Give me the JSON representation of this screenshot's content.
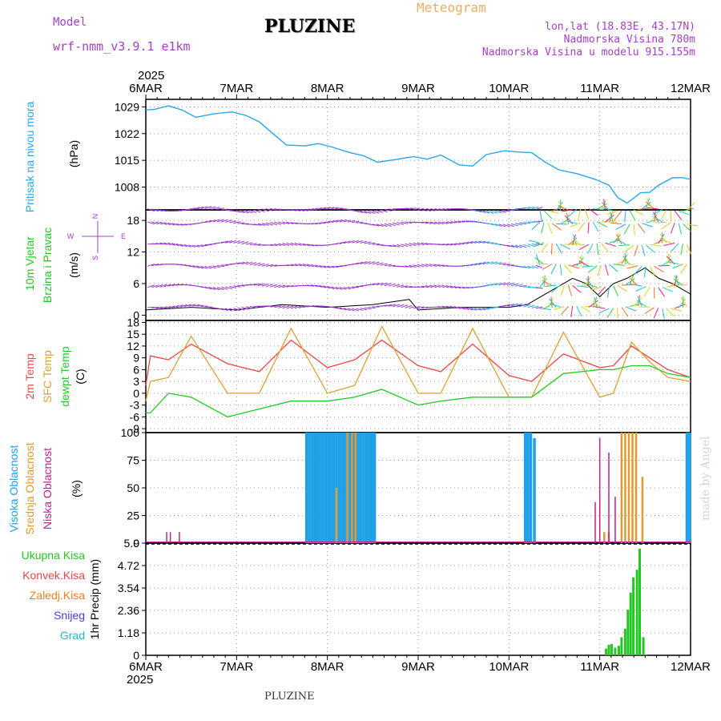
{
  "header": {
    "model_label": "Model",
    "model_name": "wrf-nmm_v3.9.1 e1km",
    "station": "PLUZINE",
    "product": "Meteogram",
    "coords": "lon,lat (18.83E, 43.17N)",
    "altitude": "Nadmorska Visina 780m",
    "model_altitude": "Nadmorska Visina u modelu 915.155m",
    "credit": "made by Angel"
  },
  "footer": {
    "station": "PLUZINE"
  },
  "axis_time": {
    "year": "2025",
    "ticks": [
      "6MAR",
      "7MAR",
      "8MAR",
      "9MAR",
      "10MAR",
      "11MAR",
      "12MAR"
    ]
  },
  "colors": {
    "pressure": "#2aa8e6",
    "temp2m": "#e84848",
    "sfc_temp": "#e0a030",
    "dewpt": "#22cc22",
    "high_cloud": "#1fa0e8",
    "mid_cloud": "#e09a30",
    "low_cloud": "#c0208a",
    "rain_total": "#22c822",
    "rain_conv": "#e84848",
    "rain_frozen": "#f08020",
    "snow": "#4040e0",
    "hail": "#20c0c0",
    "wind_label": "#a640c8"
  },
  "chart_data": [
    {
      "type": "line",
      "panel": "pressure",
      "ylabel": [
        "Pritisak na nivou mora",
        "(hPa)"
      ],
      "ylim": [
        1002,
        1031
      ],
      "yticks": [
        1008,
        1015,
        1022,
        1029
      ],
      "x_days": [
        0,
        0.1,
        0.25,
        0.4,
        0.55,
        0.75,
        0.95,
        1.1,
        1.25,
        1.4,
        1.55,
        1.75,
        1.9,
        2.05,
        2.25,
        2.4,
        2.55,
        2.75,
        2.95,
        3.1,
        3.25,
        3.45,
        3.6,
        3.75,
        3.95,
        4.1,
        4.25,
        4.4,
        4.55,
        4.75,
        4.95,
        5.1,
        5.2,
        5.3,
        5.38,
        5.45,
        5.55,
        5.65,
        5.8,
        5.9,
        6.0
      ],
      "series": [
        {
          "values": [
            1028.2,
            1028.4,
            1029.3,
            1028.2,
            1026.3,
            1027.2,
            1027.7,
            1026.8,
            1025.1,
            1022.0,
            1019.0,
            1018.8,
            1019.4,
            1018.5,
            1017.0,
            1016.2,
            1014.5,
            1015.2,
            1016.0,
            1015.3,
            1016.4,
            1013.8,
            1013.5,
            1016.5,
            1017.5,
            1017.2,
            1017.0,
            1014.5,
            1012.5,
            1011.5,
            1010.0,
            1008.5,
            1005.2,
            1003.8,
            1005.2,
            1006.5,
            1006.6,
            1008.5,
            1010.4,
            1010.5,
            1010.0
          ]
        }
      ]
    },
    {
      "type": "line",
      "panel": "wind",
      "ylabel": [
        "10m Vjetar",
        "Brzina i Pravac",
        "(m/s)"
      ],
      "compass": [
        "N",
        "W",
        "E",
        "S"
      ],
      "ylim": [
        -1,
        20
      ],
      "yticks": [
        0,
        6,
        12,
        18
      ],
      "x_days": [
        0,
        0.5,
        1.0,
        1.5,
        2.0,
        2.5,
        2.9,
        3.0,
        3.5,
        4.0,
        4.2,
        4.3,
        4.5,
        4.7,
        4.85,
        5.0,
        5.15,
        5.3,
        5.5,
        5.65,
        5.8,
        6.0
      ],
      "series": [
        {
          "name": "",
          "values": [
            1,
            1.5,
            1,
            2,
            1.5,
            2,
            3,
            1,
            1.5,
            1.5,
            2,
            3,
            5,
            7,
            6,
            3.5,
            6,
            7,
            9,
            7,
            6,
            4
          ]
        }
      ]
    },
    {
      "type": "line",
      "panel": "temperature",
      "ylabel": [
        "2m Temp",
        "SFC Temp",
        "dewpt Temp",
        "(C)"
      ],
      "ylim": [
        -10,
        18.5
      ],
      "yticks": [
        -9,
        -6,
        -3,
        0,
        3,
        6,
        9,
        12,
        15,
        18
      ],
      "x_days": [
        0,
        0.05,
        0.25,
        0.5,
        0.9,
        1.25,
        1.6,
        2.0,
        2.3,
        2.6,
        3.0,
        3.25,
        3.6,
        4.0,
        4.25,
        4.6,
        5.0,
        5.15,
        5.35,
        5.55,
        5.75,
        6.0
      ],
      "series": [
        {
          "name": "2m Temp",
          "values": [
            2,
            9.5,
            8.5,
            12.5,
            7.5,
            5.5,
            13.5,
            6.5,
            8.5,
            13.5,
            7,
            5.5,
            12.5,
            4.5,
            3,
            10,
            6.5,
            7,
            12,
            9,
            6,
            4
          ]
        },
        {
          "name": "SFC Temp",
          "values": [
            -2,
            3,
            4,
            14.5,
            0,
            0,
            16.5,
            0,
            2,
            17,
            0,
            0,
            16.5,
            -1,
            -1,
            15.5,
            -1,
            0,
            13,
            8,
            4,
            3
          ]
        },
        {
          "name": "dewpt Temp",
          "values": [
            -5,
            -5,
            0,
            -1,
            -6,
            -4,
            -2,
            -2,
            -1,
            1,
            -3,
            -2,
            -1,
            -1,
            -1,
            5,
            6,
            6,
            7,
            7,
            5,
            4
          ]
        }
      ]
    },
    {
      "type": "bar",
      "panel": "cloud",
      "ylabel": [
        "Visoka Oblacnost",
        "Srednja Oblacnost",
        "Niska Oblacnost",
        "(%)"
      ],
      "ylim": [
        0,
        100
      ],
      "yticks": [
        0,
        25,
        50,
        75,
        100
      ],
      "series": [
        {
          "name": "Visoka Oblacnost",
          "x_days": [
            1.77,
            1.8,
            1.83,
            1.86,
            1.89,
            1.92,
            1.95,
            1.98,
            2.01,
            2.04,
            2.07,
            2.1,
            2.13,
            2.16,
            2.19,
            2.22,
            2.25,
            2.28,
            2.31,
            2.34,
            2.37,
            2.4,
            2.43,
            2.46,
            2.49,
            2.52,
            4.18,
            4.21,
            4.24,
            4.28,
            5.96,
            5.99
          ],
          "values": [
            100,
            100,
            100,
            100,
            100,
            100,
            100,
            100,
            100,
            100,
            100,
            100,
            100,
            100,
            100,
            100,
            100,
            100,
            100,
            100,
            100,
            100,
            100,
            100,
            100,
            100,
            100,
            100,
            100,
            95,
            100,
            100
          ]
        },
        {
          "name": "Srednja Oblacnost",
          "x_days": [
            2.1,
            2.22,
            2.27,
            2.31,
            5.05,
            5.1,
            5.24,
            5.28,
            5.32,
            5.36,
            5.4,
            5.47
          ],
          "values": [
            50,
            100,
            100,
            100,
            10,
            10,
            100,
            100,
            100,
            100,
            100,
            60
          ]
        },
        {
          "name": "Niska Oblacnost",
          "x_days": [
            0.23,
            0.27,
            0.37,
            4.95,
            5.0,
            5.1,
            5.17
          ],
          "values": [
            10,
            10,
            10,
            37,
            95,
            82,
            42
          ]
        }
      ]
    },
    {
      "type": "bar",
      "panel": "precip",
      "ylabel": [
        "1hr Precip (mm)"
      ],
      "legend": [
        "Ukupna Kisa",
        "Konvek.Kisa",
        "Zaledj.Kisa",
        "Snijeg",
        "Grad"
      ],
      "ylim": [
        0,
        5.9
      ],
      "yticks": [
        0,
        1.18,
        2.36,
        3.54,
        4.72,
        5.9
      ],
      "series": [
        {
          "name": "Ukupna Kisa",
          "x_days": [
            5.07,
            5.1,
            5.13,
            5.17,
            5.21,
            5.24,
            5.28,
            5.31,
            5.34,
            5.37,
            5.41,
            5.44,
            5.48,
            5.51
          ],
          "values": [
            0.35,
            0.55,
            0.6,
            0.4,
            0.5,
            0.95,
            1.4,
            2.4,
            3.3,
            4.1,
            4.5,
            5.6,
            0.95,
            0.05
          ]
        }
      ]
    }
  ]
}
